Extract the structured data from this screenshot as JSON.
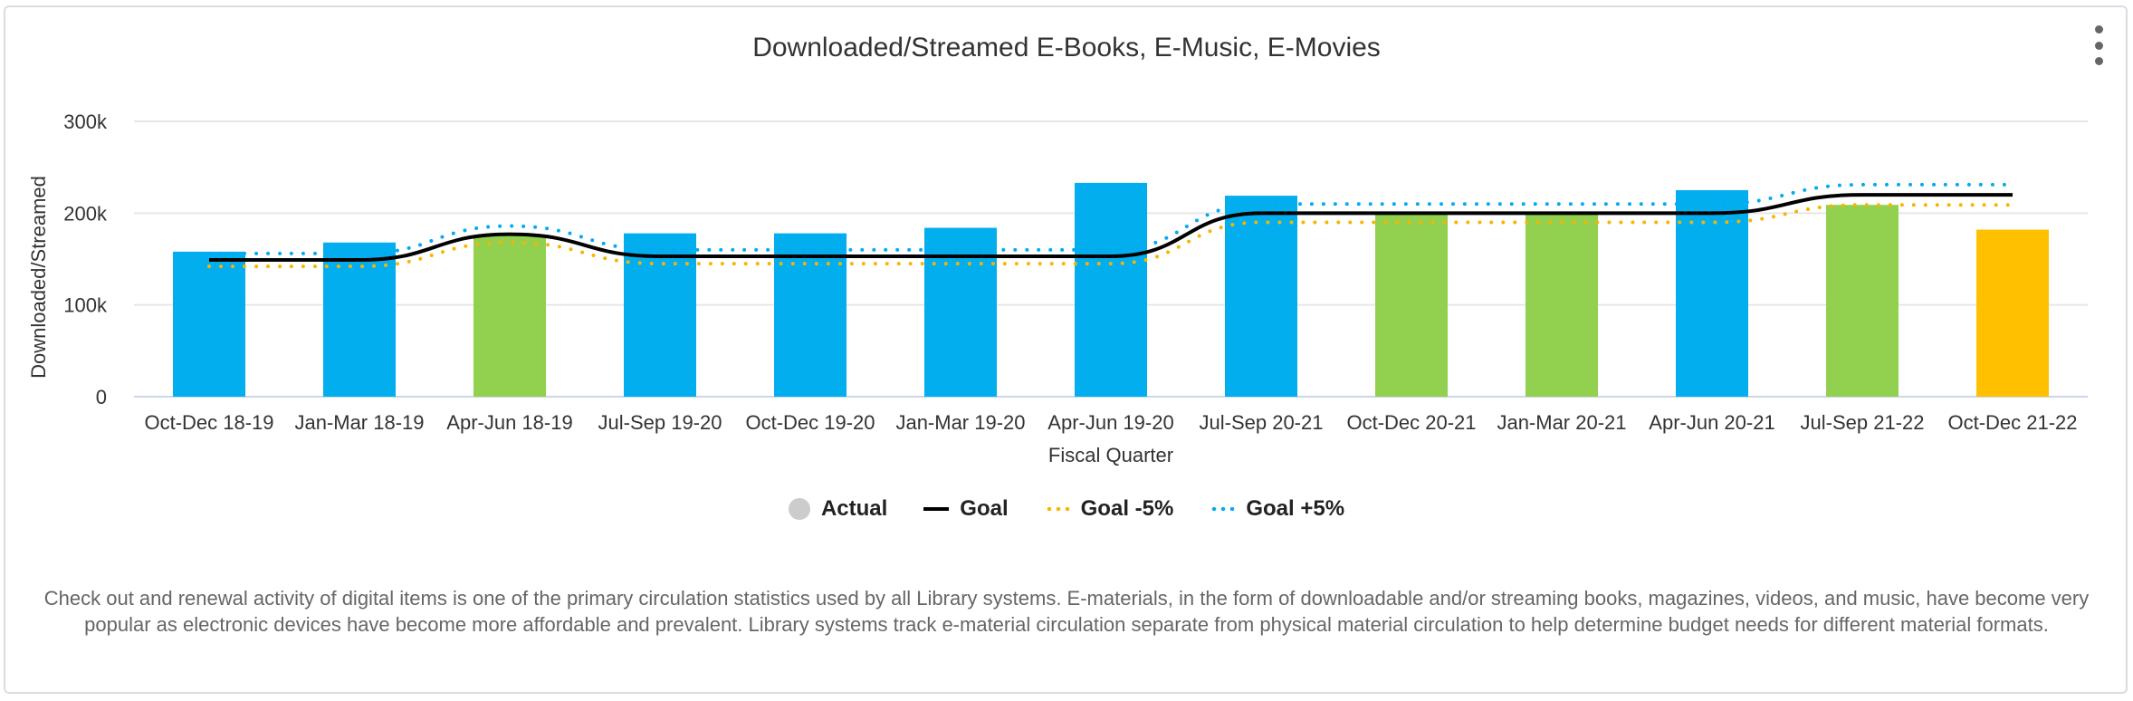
{
  "chart_data": {
    "type": "bar",
    "title": "Downloaded/Streamed E-Books, E-Music, E-Movies",
    "xlabel": "Fiscal Quarter",
    "ylabel": "Downloaded/Streamed",
    "ylim": [
      0,
      300000
    ],
    "yticks": [
      {
        "value": 0,
        "label": "0"
      },
      {
        "value": 100000,
        "label": "100k"
      },
      {
        "value": 200000,
        "label": "200k"
      },
      {
        "value": 300000,
        "label": "300k"
      }
    ],
    "grid": true,
    "legend_position": "bottom",
    "categories": [
      "Oct-Dec 18-19",
      "Jan-Mar 18-19",
      "Apr-Jun 18-19",
      "Jul-Sep 19-20",
      "Oct-Dec 19-20",
      "Jan-Mar 19-20",
      "Apr-Jun 19-20",
      "Jul-Sep 20-21",
      "Oct-Dec 20-21",
      "Jan-Mar 20-21",
      "Apr-Jun 20-21",
      "Jul-Sep 21-22",
      "Oct-Dec 21-22"
    ],
    "series": [
      {
        "name": "Actual",
        "kind": "bar",
        "color": "#cccccc",
        "values": [
          158000,
          168000,
          175000,
          178000,
          178000,
          184000,
          233000,
          219000,
          200000,
          201000,
          225000,
          209000,
          182000
        ],
        "bar_colors": [
          "#03aeef",
          "#03aeef",
          "#92d050",
          "#03aeef",
          "#03aeef",
          "#03aeef",
          "#03aeef",
          "#03aeef",
          "#92d050",
          "#92d050",
          "#03aeef",
          "#92d050",
          "#ffc000"
        ]
      },
      {
        "name": "Goal",
        "kind": "line",
        "color": "#000000",
        "values": [
          149000,
          149000,
          177000,
          153000,
          153000,
          153000,
          153000,
          200000,
          200000,
          200000,
          200000,
          220000,
          220000
        ]
      },
      {
        "name": "Goal -5%",
        "kind": "dotted",
        "color": "#f7b500",
        "values": [
          142000,
          142000,
          168000,
          145000,
          145000,
          145000,
          145000,
          190000,
          190000,
          190000,
          190000,
          209000,
          209000
        ]
      },
      {
        "name": "Goal +5%",
        "kind": "dotted",
        "color": "#03a9f4",
        "values": [
          156000,
          156000,
          186000,
          160000,
          160000,
          160000,
          160000,
          210000,
          210000,
          210000,
          210000,
          231000,
          231000
        ]
      }
    ]
  },
  "description": "Check out and renewal activity of digital items is one of the primary circulation statistics used by all Library systems. E-materials, in the form of downloadable and/or streaming books, magazines, videos, and music, have become very popular as electronic devices have become more affordable and prevalent. Library systems track e-material circulation separate from physical material circulation to help determine budget needs for different material formats.",
  "menu_icon": "more-vertical-icon"
}
